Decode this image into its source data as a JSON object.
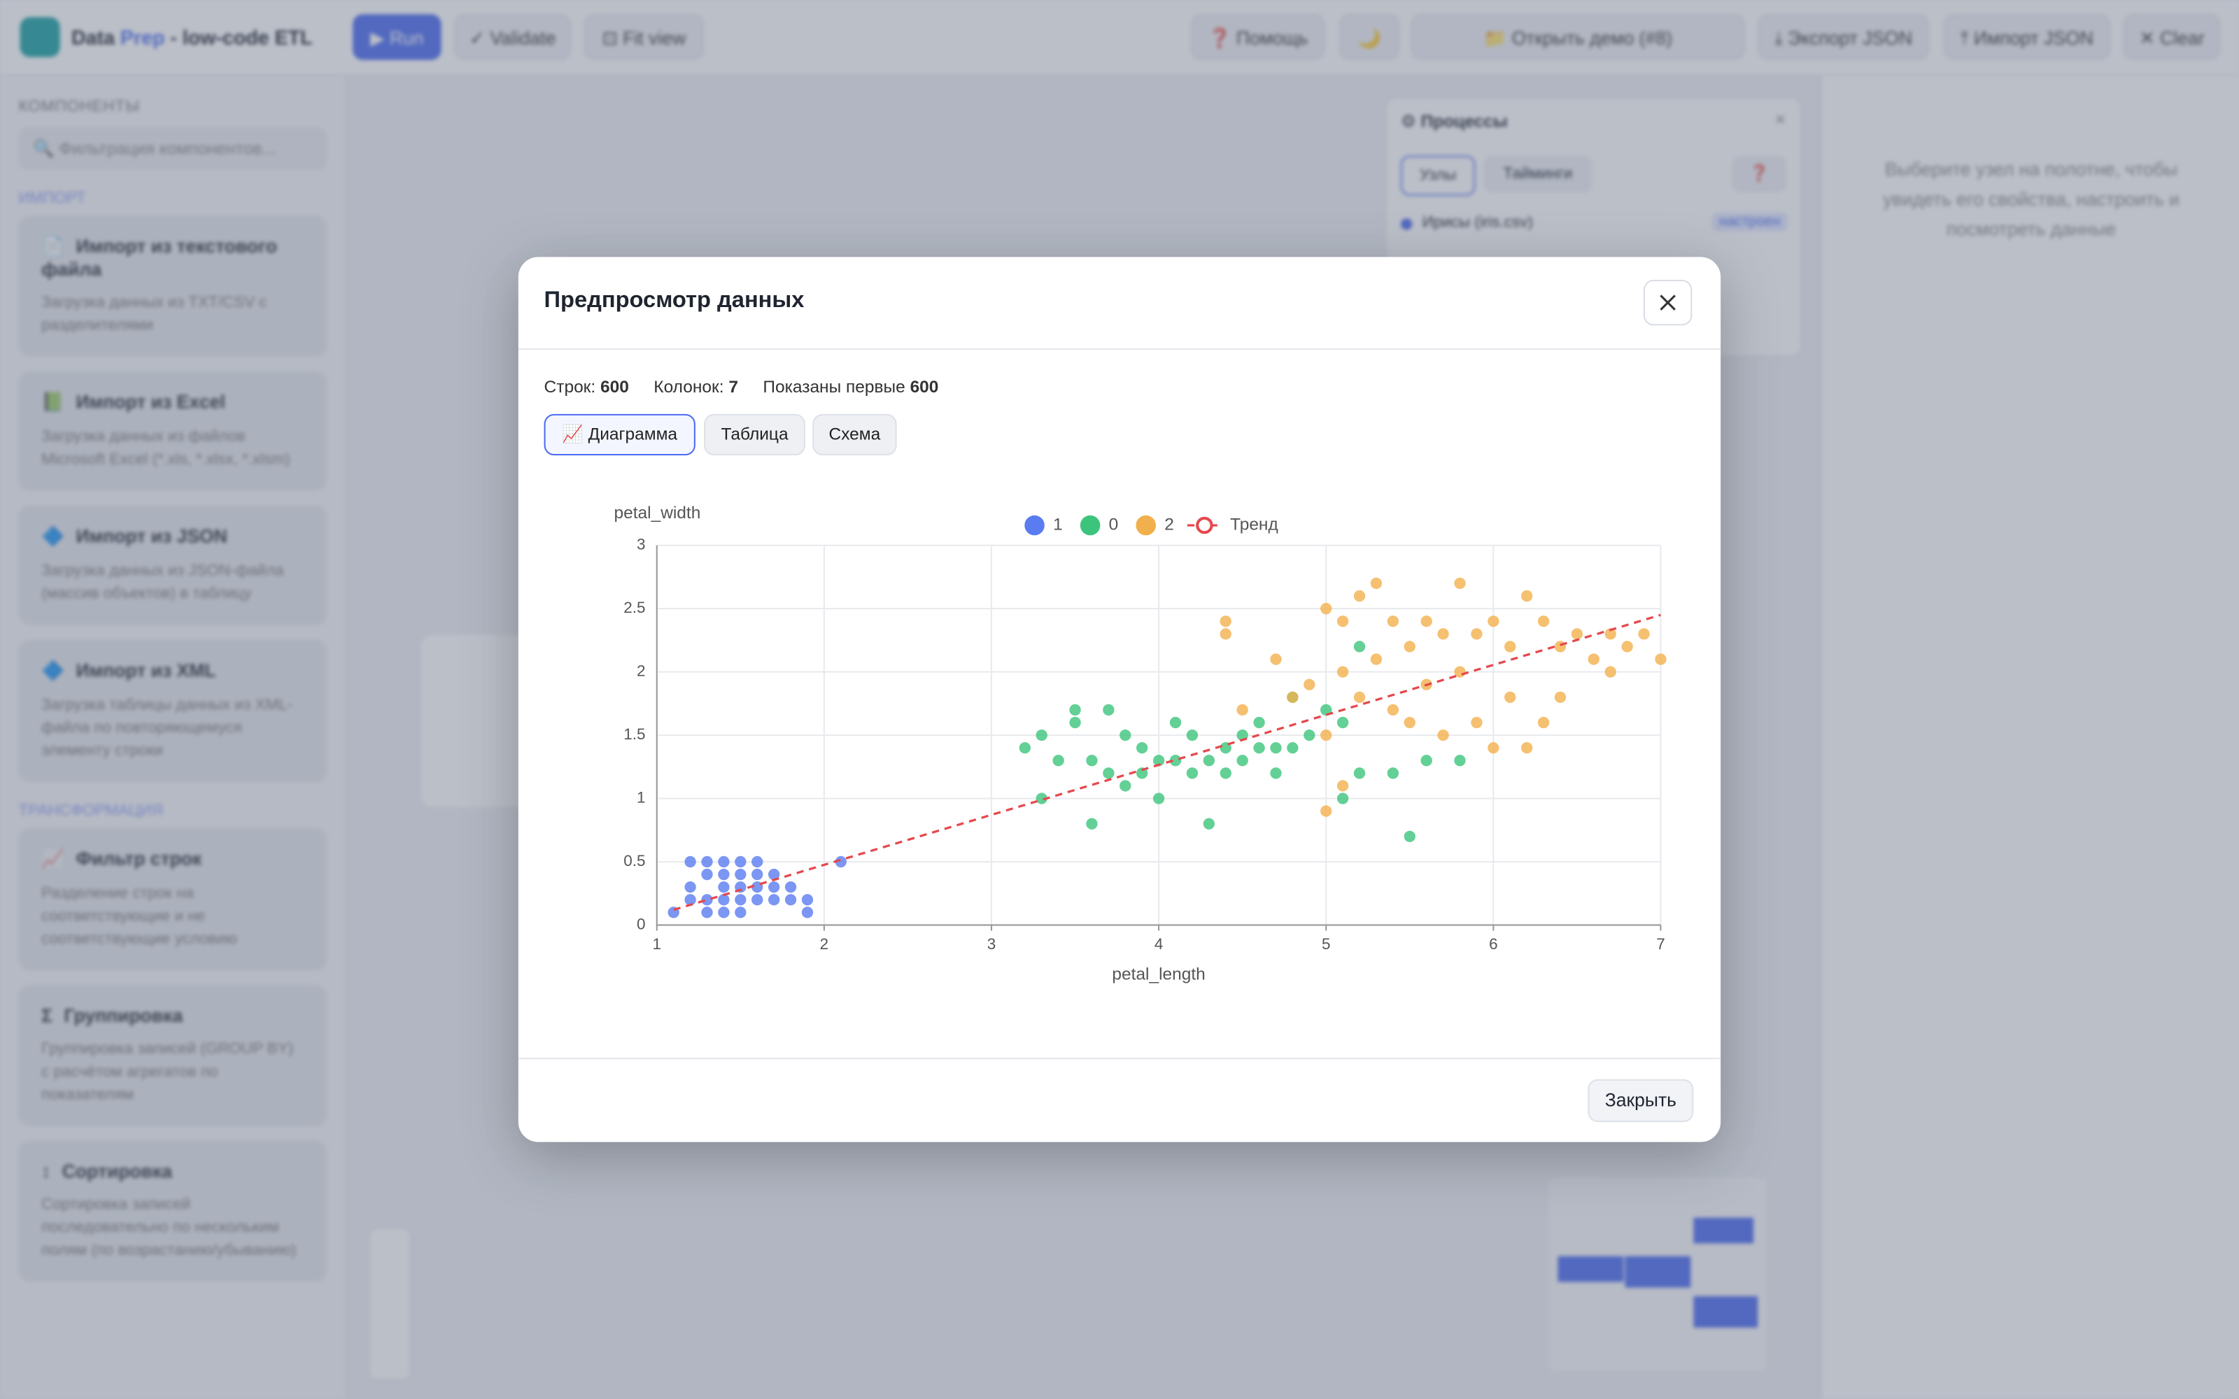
{
  "header": {
    "logo_text": "Data",
    "logo_accent": "Prep",
    "logo_suffix": "- low-code ETL",
    "buttons_left": [
      "▶ Run",
      "✓ Validate",
      "⊡ Fit view"
    ],
    "buttons_right": [
      "❓ Помощь",
      "🌙",
      "📁 Открыть демо (#8)",
      "⤓ Экспорт JSON",
      "⤒ Импорт JSON",
      "✕ Clear"
    ]
  },
  "sidebar": {
    "title": "КОМПОНЕНТЫ",
    "search_placeholder": "🔍 Фильтрация компонентов...",
    "sections": [
      {
        "title": "ИМПОРТ",
        "items": [
          {
            "icon": "📄",
            "name": "Импорт из текстового файла",
            "desc": "Загрузка данных из TXT/CSV с разделителями"
          },
          {
            "icon": "📗",
            "name": "Импорт из Excel",
            "desc": "Загрузка данных из файлов Microsoft Excel (*.xls, *.xlsx, *.xlsm)"
          },
          {
            "icon": "🔷",
            "name": "Импорт из JSON",
            "desc": "Загрузка данных из JSON-файла (массив объектов) в таблицу"
          },
          {
            "icon": "🔷",
            "name": "Импорт из XML",
            "desc": "Загрузка таблицы данных из XML-файла по повторяющемуся элементу строки"
          }
        ]
      },
      {
        "title": "ТРАНСФОРМАЦИЯ",
        "items": [
          {
            "icon": "📈",
            "name": "Фильтр строк",
            "desc": "Разделение строк на соответствующие и не соответствующие условию"
          },
          {
            "icon": "Σ",
            "name": "Группировка",
            "desc": "Группировка записей (GROUP BY) с расчётом агрегатов по показателям"
          },
          {
            "icon": "↕",
            "name": "Сортировка",
            "desc": "Сортировка записей последовательно по нескольким полям (по возрастанию/убыванию)"
          }
        ]
      }
    ]
  },
  "process_panel": {
    "title": "⚙ Процессы",
    "close": "×",
    "tabs": [
      "Узлы",
      "Тайминги"
    ],
    "help": "❓",
    "rows": [
      {
        "name": "Ирисы (iris.csv)",
        "status": "настроен"
      }
    ]
  },
  "properties_hint": "Выберите узел на полотне, чтобы увидеть его свойства, настроить и посмотреть данные",
  "modal": {
    "title": "Предпросмотр данных",
    "stats": {
      "rows_label": "Строк:",
      "rows": 600,
      "cols_label": "Колонок:",
      "cols": 7,
      "shown_label": "Показаны первые",
      "shown": 600
    },
    "tabs": [
      "📈 Диаграмма",
      "Таблица",
      "Схема"
    ],
    "close_button": "Закрыть"
  },
  "chart_data": {
    "type": "scatter",
    "x_label": "petal_length",
    "y_label": "petal_width",
    "xlim": [
      1,
      7
    ],
    "xticks": [
      1,
      2,
      3,
      4,
      5,
      6,
      7
    ],
    "ylim": [
      0,
      3
    ],
    "yticks": [
      0,
      0.5,
      1,
      1.5,
      2,
      2.5,
      3
    ],
    "grid": true,
    "legend": "top",
    "series": [
      {
        "name": "1",
        "color": "#5b7cf0",
        "x": [
          1.1,
          1.2,
          1.2,
          1.2,
          1.3,
          1.3,
          1.3,
          1.3,
          1.4,
          1.4,
          1.4,
          1.4,
          1.4,
          1.5,
          1.5,
          1.5,
          1.5,
          1.5,
          1.6,
          1.6,
          1.6,
          1.6,
          1.7,
          1.7,
          1.7,
          1.8,
          1.8,
          1.9,
          1.9,
          2.1
        ],
        "y": [
          0.1,
          0.2,
          0.3,
          0.5,
          0.1,
          0.2,
          0.4,
          0.5,
          0.1,
          0.2,
          0.3,
          0.4,
          0.5,
          0.1,
          0.2,
          0.3,
          0.4,
          0.5,
          0.2,
          0.3,
          0.4,
          0.5,
          0.2,
          0.3,
          0.4,
          0.2,
          0.3,
          0.2,
          0.1,
          0.5
        ]
      },
      {
        "name": "0",
        "color": "#3cc47c",
        "x": [
          3.2,
          3.3,
          3.3,
          3.4,
          3.5,
          3.5,
          3.6,
          3.6,
          3.7,
          3.7,
          3.8,
          3.8,
          3.9,
          3.9,
          4.0,
          4.0,
          4.1,
          4.1,
          4.2,
          4.2,
          4.3,
          4.3,
          4.4,
          4.4,
          4.5,
          4.5,
          4.6,
          4.6,
          4.7,
          4.7,
          4.8,
          4.8,
          4.9,
          5.0,
          5.1,
          5.1,
          5.2,
          5.4,
          5.5,
          5.6,
          5.8,
          5.2
        ],
        "y": [
          1.4,
          1.5,
          1.0,
          1.3,
          1.7,
          1.6,
          1.3,
          0.8,
          1.7,
          1.2,
          1.5,
          1.1,
          1.4,
          1.2,
          1.3,
          1.0,
          1.6,
          1.3,
          1.5,
          1.2,
          1.3,
          0.8,
          1.4,
          1.2,
          1.5,
          1.3,
          1.4,
          1.6,
          1.4,
          1.2,
          1.8,
          1.4,
          1.5,
          1.7,
          1.6,
          1.0,
          1.2,
          1.2,
          0.7,
          1.3,
          1.3,
          2.2
        ]
      },
      {
        "name": "2",
        "color": "#f2b04c",
        "x": [
          4.4,
          4.4,
          4.5,
          4.7,
          4.8,
          4.9,
          5.0,
          5.0,
          5.0,
          5.1,
          5.1,
          5.1,
          5.2,
          5.2,
          5.3,
          5.3,
          5.4,
          5.4,
          5.5,
          5.5,
          5.6,
          5.6,
          5.7,
          5.7,
          5.8,
          5.8,
          5.9,
          5.9,
          6.0,
          6.0,
          6.1,
          6.1,
          6.2,
          6.2,
          6.3,
          6.3,
          6.4,
          6.4,
          6.5,
          6.6,
          6.7,
          6.7,
          6.8,
          6.9,
          7.0
        ],
        "y": [
          2.4,
          2.3,
          1.7,
          2.1,
          1.8,
          1.9,
          2.5,
          1.5,
          0.9,
          2.4,
          2.0,
          1.1,
          2.6,
          1.8,
          2.7,
          2.1,
          2.4,
          1.7,
          2.2,
          1.6,
          2.4,
          1.9,
          2.3,
          1.5,
          2.7,
          2.0,
          2.3,
          1.6,
          2.4,
          1.4,
          2.2,
          1.8,
          2.6,
          1.4,
          2.4,
          1.6,
          2.2,
          1.8,
          2.3,
          2.1,
          2.3,
          2.0,
          2.2,
          2.3,
          2.1
        ]
      },
      {
        "name": "Тренд",
        "type": "line",
        "color": "#e5484d",
        "dashed": true,
        "x": [
          1.1,
          7
        ],
        "y": [
          0.12,
          2.45
        ]
      }
    ]
  }
}
